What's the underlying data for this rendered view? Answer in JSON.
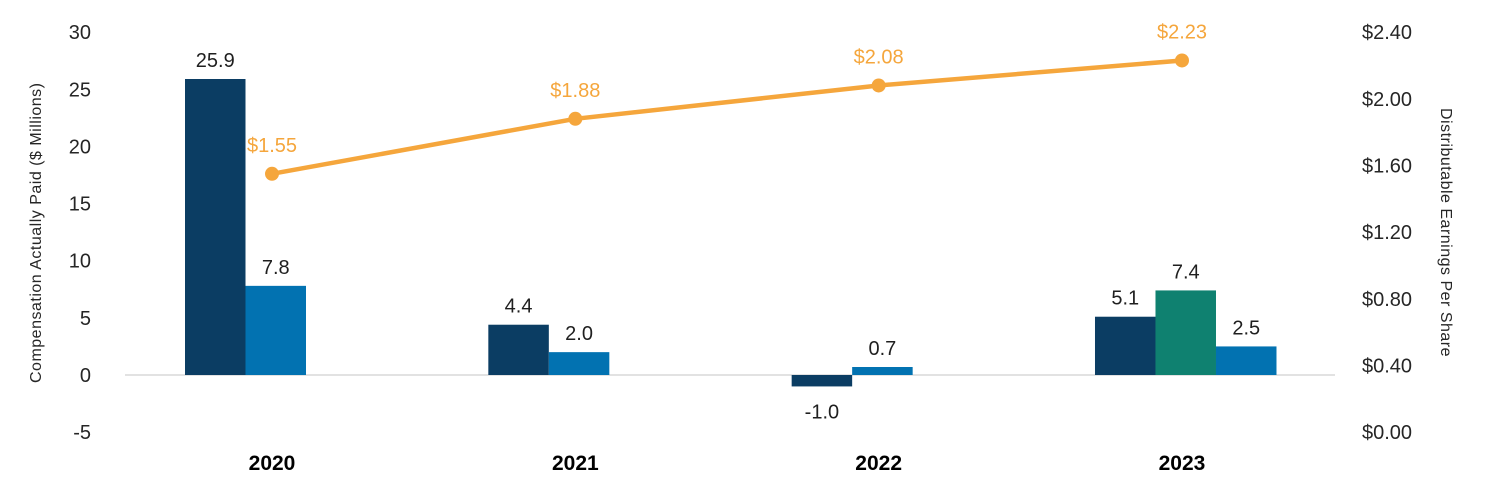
{
  "chart_data": {
    "type": "combo-bar-line",
    "title": "",
    "legend": "none",
    "grid": "off",
    "categories": [
      "2020",
      "2021",
      "2022",
      "2023"
    ],
    "left_axis": {
      "title": "Compensation Actually Paid ($ Millions)",
      "min": -5,
      "max": 30,
      "ticks": [
        {
          "label": "30",
          "value": 30
        },
        {
          "label": "25",
          "value": 25
        },
        {
          "label": "20",
          "value": 20
        },
        {
          "label": "15",
          "value": 15
        },
        {
          "label": "10",
          "value": 10
        },
        {
          "label": "5",
          "value": 5
        },
        {
          "label": "0",
          "value": 0
        },
        {
          "label": "-5",
          "value": -5
        }
      ]
    },
    "right_axis": {
      "title": "Distributable Earnings Per Share",
      "min": 0,
      "max": 2.4,
      "ticks": [
        {
          "label": "$2.40",
          "value": 2.4
        },
        {
          "label": "$2.00",
          "value": 2.0
        },
        {
          "label": "$1.60",
          "value": 1.6
        },
        {
          "label": "$1.20",
          "value": 1.2
        },
        {
          "label": "$0.80",
          "value": 0.8
        },
        {
          "label": "$0.40",
          "value": 0.4
        },
        {
          "label": "$0.00",
          "value": 0.0
        }
      ]
    },
    "bar_groups": [
      {
        "category": "2020",
        "bars": [
          {
            "color": "navy",
            "value": 25.9,
            "label": "25.9"
          },
          {
            "color": "blue",
            "value": 7.8,
            "label": "7.8"
          }
        ]
      },
      {
        "category": "2021",
        "bars": [
          {
            "color": "navy",
            "value": 4.4,
            "label": "4.4"
          },
          {
            "color": "blue",
            "value": 2.0,
            "label": "2.0"
          }
        ]
      },
      {
        "category": "2022",
        "bars": [
          {
            "color": "navy",
            "value": -1.0,
            "label": "-1.0"
          },
          {
            "color": "blue",
            "value": 0.7,
            "label": "0.7"
          }
        ]
      },
      {
        "category": "2023",
        "bars": [
          {
            "color": "navy",
            "value": 5.1,
            "label": "5.1"
          },
          {
            "color": "teal",
            "value": 7.4,
            "label": "7.4"
          },
          {
            "color": "blue",
            "value": 2.5,
            "label": "2.5"
          }
        ]
      }
    ],
    "line_series": {
      "axis": "right",
      "color": "orange",
      "points": [
        {
          "category": "2020",
          "value": 1.55,
          "label": "$1.55"
        },
        {
          "category": "2021",
          "value": 1.88,
          "label": "$1.88"
        },
        {
          "category": "2022",
          "value": 2.08,
          "label": "$2.08"
        },
        {
          "category": "2023",
          "value": 2.23,
          "label": "$2.23"
        }
      ]
    },
    "colors": {
      "navy": "#0B3D63",
      "blue": "#0272B1",
      "teal": "#0F8170",
      "orange": "#F5A63C",
      "axis_line": "#E2E2E2",
      "text": "#262626"
    }
  }
}
